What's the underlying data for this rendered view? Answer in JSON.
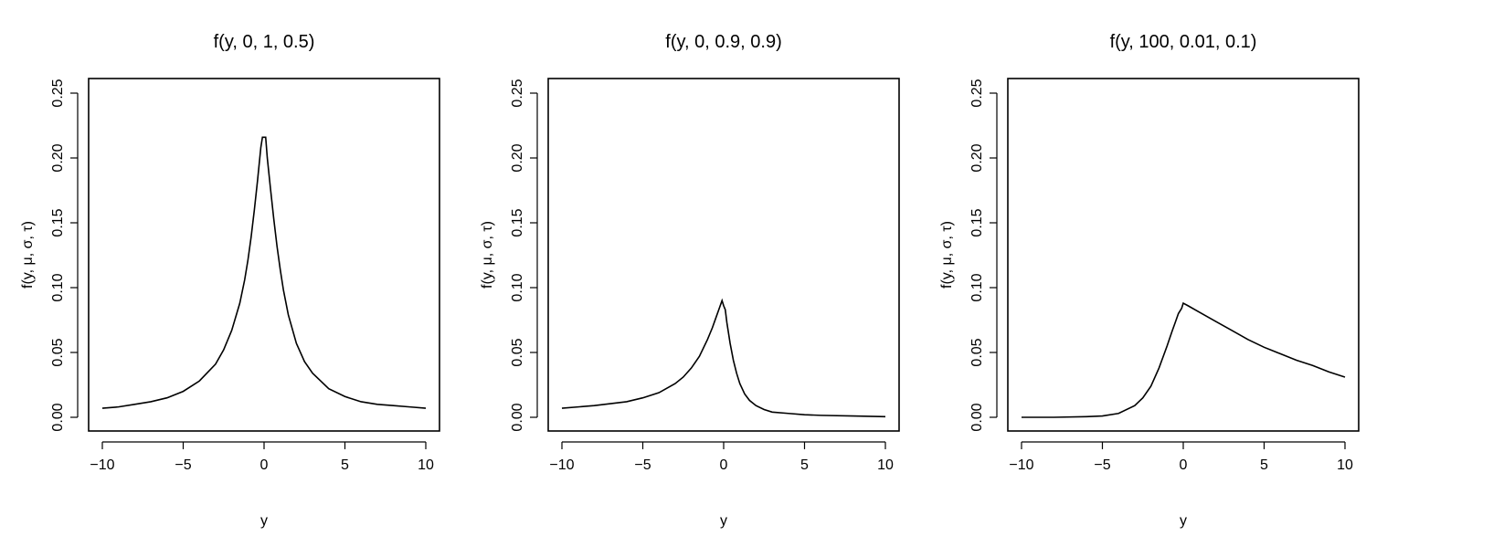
{
  "chart_data": [
    {
      "type": "line",
      "title": "f(y, 0, 1, 0.5)",
      "xlabel": "y",
      "ylabel": "f(y, μ, σ, τ)",
      "xlim": [
        -10,
        10
      ],
      "ylim": [
        0,
        0.25
      ],
      "xticks": [
        -10,
        -5,
        0,
        5,
        10
      ],
      "yticks": [
        0.0,
        0.05,
        0.1,
        0.15,
        0.2,
        0.25
      ],
      "xtick_labels": [
        "−10",
        "−5",
        "0",
        "5",
        "10"
      ],
      "ytick_labels": [
        "0.00",
        "0.05",
        "0.10",
        "0.15",
        "0.20",
        "0.25"
      ],
      "grid": false,
      "series": [
        {
          "x": [
            -10,
            -9,
            -8,
            -7,
            -6,
            -5,
            -4,
            -3,
            -2.5,
            -2,
            -1.5,
            -1.2,
            -1,
            -0.8,
            -0.6,
            -0.4,
            -0.2,
            -0.1,
            0,
            0.1,
            0.2,
            0.4,
            0.6,
            0.8,
            1,
            1.2,
            1.5,
            2,
            2.5,
            3,
            4,
            5,
            6,
            7,
            8,
            9,
            10
          ],
          "y": [
            0.007,
            0.008,
            0.01,
            0.012,
            0.015,
            0.02,
            0.028,
            0.041,
            0.052,
            0.067,
            0.088,
            0.106,
            0.121,
            0.139,
            0.16,
            0.183,
            0.208,
            0.216,
            0.216,
            0.216,
            0.2,
            0.176,
            0.153,
            0.132,
            0.114,
            0.098,
            0.079,
            0.057,
            0.043,
            0.034,
            0.022,
            0.016,
            0.012,
            0.01,
            0.009,
            0.008,
            0.007
          ]
        }
      ]
    },
    {
      "type": "line",
      "title": "f(y, 0, 0.9, 0.9)",
      "xlabel": "y",
      "ylabel": "f(y, μ, σ, τ)",
      "xlim": [
        -10,
        10
      ],
      "ylim": [
        0,
        0.25
      ],
      "xticks": [
        -10,
        -5,
        0,
        5,
        10
      ],
      "yticks": [
        0.0,
        0.05,
        0.1,
        0.15,
        0.2,
        0.25
      ],
      "xtick_labels": [
        "−10",
        "−5",
        "0",
        "5",
        "10"
      ],
      "ytick_labels": [
        "0.00",
        "0.05",
        "0.10",
        "0.15",
        "0.20",
        "0.25"
      ],
      "grid": false,
      "series": [
        {
          "x": [
            -10,
            -8,
            -6,
            -5,
            -4,
            -3,
            -2.5,
            -2,
            -1.5,
            -1,
            -0.7,
            -0.5,
            -0.3,
            -0.1,
            0,
            0.1,
            0.2,
            0.4,
            0.6,
            0.8,
            1,
            1.3,
            1.6,
            2,
            2.5,
            3,
            4,
            5,
            6,
            8,
            10
          ],
          "y": [
            0.007,
            0.009,
            0.012,
            0.015,
            0.019,
            0.026,
            0.031,
            0.038,
            0.047,
            0.06,
            0.069,
            0.076,
            0.083,
            0.09,
            0.086,
            0.083,
            0.073,
            0.057,
            0.044,
            0.034,
            0.026,
            0.018,
            0.013,
            0.009,
            0.006,
            0.004,
            0.003,
            0.002,
            0.0015,
            0.001,
            0.0005
          ]
        }
      ]
    },
    {
      "type": "line",
      "title": "f(y, 100, 0.01, 0.1)",
      "xlabel": "y",
      "ylabel": "f(y, μ, σ, τ)",
      "xlim": [
        -10,
        10
      ],
      "ylim": [
        0,
        0.25
      ],
      "xticks": [
        -10,
        -5,
        0,
        5,
        10
      ],
      "yticks": [
        0.0,
        0.05,
        0.1,
        0.15,
        0.2,
        0.25
      ],
      "xtick_labels": [
        "−10",
        "−5",
        "0",
        "5",
        "10"
      ],
      "ytick_labels": [
        "0.00",
        "0.05",
        "0.10",
        "0.15",
        "0.20",
        "0.25"
      ],
      "grid": false,
      "series": [
        {
          "x": [
            -10,
            -8,
            -6,
            -5,
            -4,
            -3,
            -2.5,
            -2,
            -1.5,
            -1,
            -0.7,
            -0.5,
            -0.3,
            -0.1,
            0,
            0.3,
            1,
            2,
            3,
            4,
            5,
            6,
            7,
            8,
            9,
            10
          ],
          "y": [
            0.0,
            0.0,
            0.0005,
            0.001,
            0.003,
            0.009,
            0.015,
            0.024,
            0.038,
            0.055,
            0.066,
            0.073,
            0.08,
            0.084,
            0.088,
            0.086,
            0.081,
            0.074,
            0.067,
            0.06,
            0.054,
            0.049,
            0.044,
            0.04,
            0.035,
            0.031
          ]
        }
      ]
    }
  ]
}
